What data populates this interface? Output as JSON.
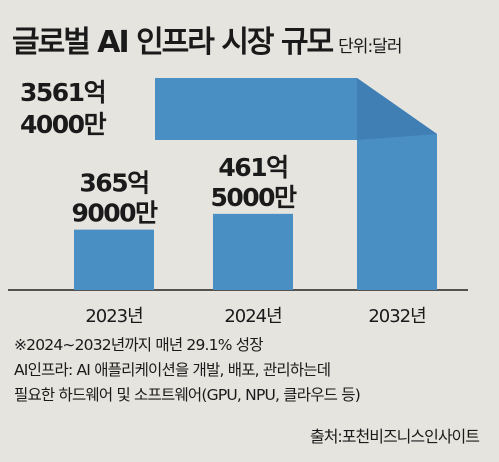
{
  "title": "글로벌 AI 인프라 시장 규모",
  "unit": "단위:달러",
  "chart_data": {
    "type": "bar",
    "categories": [
      "2023년",
      "2024년",
      "2032년"
    ],
    "values": [
      365.9,
      461.5,
      3561.4
    ],
    "value_labels": [
      [
        "365억",
        "9000만"
      ],
      [
        "461억",
        "5000만"
      ],
      [
        "3561억",
        "4000만"
      ]
    ],
    "bar_color": "#4a8fc4",
    "axis_broken": true
  },
  "notes": [
    "※2024∼2032년까지 매년 29.1% 성장",
    "AI인프라: AI 애플리케이션을 개발, 배포, 관리하는데",
    "필요한 하드웨어 및 소프트웨어(GPU, NPU, 클라우드 등)"
  ],
  "source": "출처:포천비즈니스인사이트"
}
